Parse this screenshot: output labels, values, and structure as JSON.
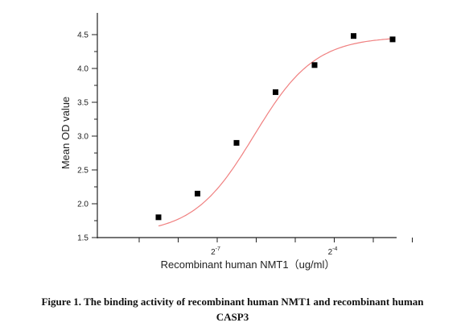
{
  "chart_data": {
    "type": "scatter",
    "xlabel": "Recombinant human  NMT1（ug/ml）",
    "ylabel": "Mean OD value",
    "ylim": [
      1.5,
      4.6
    ],
    "y_ticks": [
      "1.5",
      "2.0",
      "2.5",
      "3.0",
      "3.5",
      "4.0",
      "4.5"
    ],
    "x_tick_labels": [
      {
        "base": "2",
        "exp": "-7"
      },
      {
        "base": "2",
        "exp": "-4"
      }
    ],
    "x_scale": "log2",
    "x_log2": [
      -9,
      -8,
      -7,
      -6,
      -5,
      -4,
      -3,
      -2
    ],
    "series": [
      {
        "marker": "square",
        "color": "#000000",
        "x_log2": [
          -9,
          -8,
          -7,
          -6,
          -5,
          -4,
          -3
        ],
        "values": [
          1.8,
          2.15,
          2.9,
          3.65,
          4.05,
          4.48,
          4.43
        ]
      }
    ],
    "fit_curve": {
      "color": "#f08080",
      "type": "sigmoidal"
    }
  },
  "caption": {
    "line1": "Figure 1. The binding activity of    recombinant human NMT1 and recombinant human",
    "line2": "CASP3"
  }
}
